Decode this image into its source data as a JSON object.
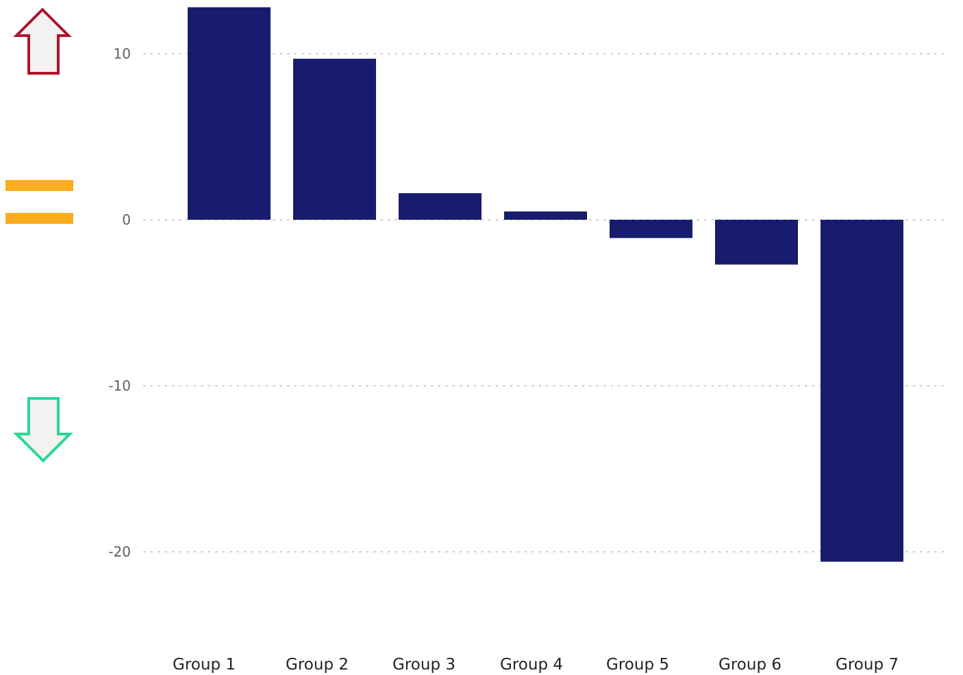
{
  "colors": {
    "bar": "#171c6e",
    "grid": "#c8c6c4",
    "up_arrow_stroke": "#b0122a",
    "down_arrow_stroke": "#2ad796",
    "equal_sign": "#fcac1c",
    "arrow_fill": "#f3f2f1"
  },
  "indicators": {
    "up": "up-arrow-icon",
    "equal": "equal-sign-icon",
    "down": "down-arrow-icon"
  },
  "chart_data": {
    "type": "bar",
    "categories": [
      "Group 1",
      "Group 2",
      "Group 3",
      "Group 4",
      "Group 5",
      "Group 6",
      "Group 7"
    ],
    "values": [
      12.8,
      9.7,
      1.6,
      0.5,
      -1.1,
      -2.7,
      -20.6
    ],
    "title": "",
    "xlabel": "",
    "ylabel": "",
    "ylim": [
      -24,
      13
    ],
    "yticks": [
      10,
      0,
      -10,
      -20
    ],
    "ytick_labels": [
      "10",
      "0",
      "-10",
      "-20"
    ],
    "grid": true,
    "legend": "none"
  }
}
